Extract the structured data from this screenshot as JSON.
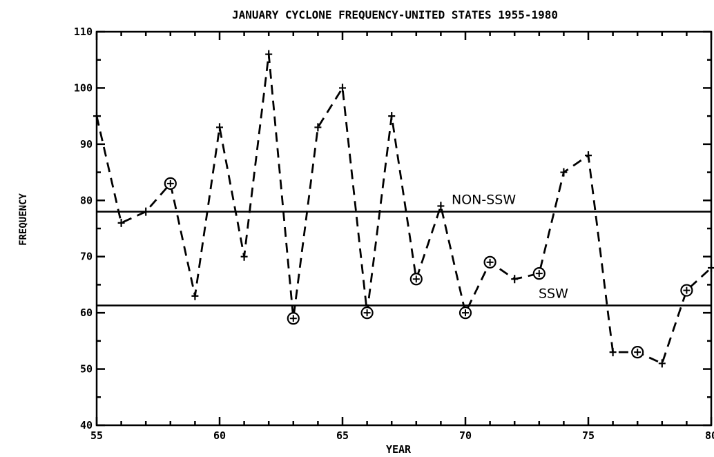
{
  "chart_data": {
    "type": "line",
    "title": "JANUARY CYCLONE FREQUENCY-UNITED STATES 1955-1980",
    "xlabel": "YEAR",
    "ylabel": "FREQUENCY",
    "xlim": [
      55,
      80
    ],
    "ylim": [
      40,
      110
    ],
    "x_ticks": [
      {
        "value": 55,
        "label": "55"
      },
      {
        "value": 60,
        "label": "60"
      },
      {
        "value": 65,
        "label": "65"
      },
      {
        "value": 70,
        "label": "70"
      },
      {
        "value": 75,
        "label": "75"
      },
      {
        "value": 80,
        "label": "80"
      }
    ],
    "y_ticks": [
      {
        "value": 40,
        "label": "40"
      },
      {
        "value": 50,
        "label": "50"
      },
      {
        "value": 60,
        "label": "60"
      },
      {
        "value": 70,
        "label": "70"
      },
      {
        "value": 80,
        "label": "80"
      },
      {
        "value": 90,
        "label": "90"
      },
      {
        "value": 100,
        "label": "100"
      },
      {
        "value": 110,
        "label": "110"
      }
    ],
    "series": [
      {
        "x": [
          55,
          56,
          57,
          58,
          59,
          60,
          61,
          62,
          63,
          64,
          65,
          66,
          67,
          68,
          69,
          70,
          71,
          72,
          73,
          74,
          75,
          76,
          77,
          78,
          79,
          80
        ],
        "values": [
          95,
          76,
          78,
          83,
          63,
          93,
          70,
          106,
          59,
          93,
          100,
          60,
          95,
          66,
          79,
          60,
          69,
          66,
          67,
          85,
          88,
          53,
          53,
          51,
          64,
          68
        ],
        "ssw_years": [
          58,
          63,
          66,
          68,
          70,
          71,
          73,
          77,
          79
        ]
      }
    ],
    "reference_lines": [
      {
        "label": "NON-SSW",
        "value": 78
      },
      {
        "label": "SSW",
        "value": 61.3
      }
    ],
    "grid": false
  }
}
